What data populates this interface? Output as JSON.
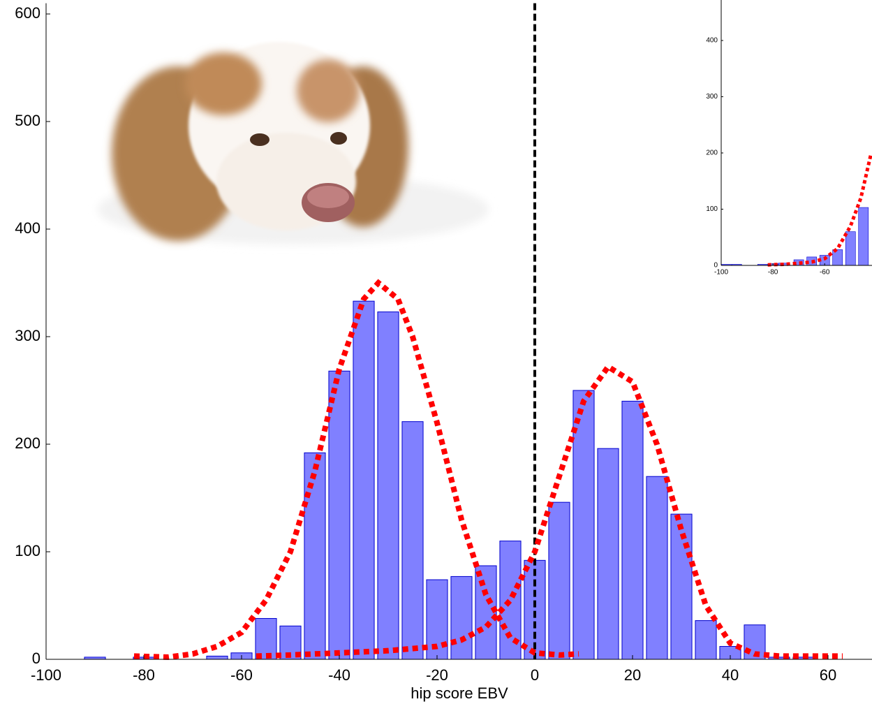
{
  "chart_data": [
    {
      "type": "bar",
      "xlabel": "hip score EBV",
      "x": [
        -90,
        -80,
        -65,
        -60,
        -55,
        -50,
        -45,
        -40,
        -35,
        -30,
        -25,
        -20,
        -15,
        -10,
        -5,
        0,
        5,
        10,
        15,
        20,
        25,
        30,
        35,
        40,
        45,
        50,
        55
      ],
      "values": [
        2,
        2,
        3,
        6,
        38,
        31,
        192,
        268,
        333,
        323,
        221,
        74,
        77,
        87,
        110,
        92,
        146,
        250,
        196,
        240,
        170,
        135,
        36,
        12,
        32,
        2,
        2
      ],
      "color": "#8080ff",
      "curves": [
        {
          "color": "#ff0000",
          "x": [
            -82,
            -75,
            -70,
            -65,
            -60,
            -55,
            -50,
            -45,
            -40,
            -35,
            -32,
            -28,
            -25,
            -20,
            -15,
            -10,
            -5,
            0,
            5,
            9
          ],
          "values": [
            3,
            2,
            5,
            12,
            25,
            55,
            100,
            175,
            270,
            335,
            350,
            335,
            300,
            220,
            130,
            60,
            20,
            6,
            4,
            5
          ]
        },
        {
          "color": "#ff0000",
          "x": [
            -57,
            -50,
            -40,
            -30,
            -20,
            -15,
            -10,
            -5,
            0,
            5,
            10,
            15,
            20,
            25,
            30,
            35,
            40,
            45,
            50,
            55,
            63
          ],
          "values": [
            3,
            4,
            6,
            8,
            12,
            18,
            30,
            55,
            100,
            170,
            240,
            272,
            258,
            200,
            120,
            50,
            15,
            5,
            3,
            3,
            3
          ]
        }
      ],
      "vline": 0,
      "xlim": [
        -100,
        69
      ],
      "ylim": [
        0,
        610
      ],
      "xticks": [
        -100,
        -80,
        -60,
        -40,
        -20,
        0,
        20,
        40,
        60
      ],
      "yticks": [
        0,
        100,
        200,
        300,
        400,
        500,
        600
      ]
    },
    {
      "type": "bar",
      "x": [
        -98,
        -94,
        -84,
        -80,
        -76,
        -70,
        -65,
        -60,
        -55,
        -50,
        -45
      ],
      "values": [
        2,
        2,
        2,
        3,
        4,
        10,
        15,
        18,
        28,
        60,
        103
      ],
      "color": "#8080ff",
      "curves": [
        {
          "color": "#ff0000",
          "x": [
            -82,
            -75,
            -65,
            -60,
            -55,
            -50,
            -46,
            -42
          ],
          "values": [
            1,
            2,
            6,
            12,
            30,
            70,
            120,
            200
          ]
        }
      ],
      "xlim": [
        -100,
        -41.7
      ],
      "ylim": [
        0,
        472
      ],
      "xticks": [
        -100,
        -80,
        -60
      ],
      "yticks": [
        0,
        100,
        200,
        300,
        400
      ]
    }
  ]
}
